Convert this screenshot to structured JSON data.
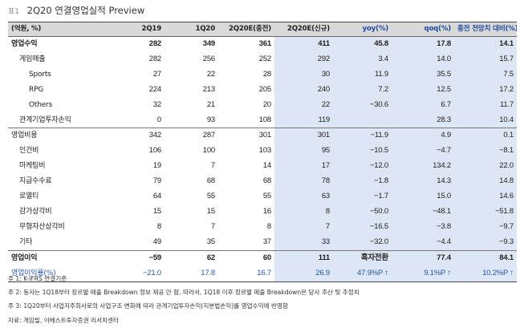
{
  "header": {
    "tag": "표1",
    "title": "2Q20 연결영업실적 Preview"
  },
  "table": {
    "columns": [
      "(억원, %)",
      "2Q19",
      "1Q20",
      "2Q20E(종전)",
      "2Q20E(신규)",
      "yoy(%)",
      "qoq(%)",
      "종전 전망치 대비(%)"
    ],
    "rows": [
      {
        "label": "영업수익",
        "values": [
          "282",
          "349",
          "361",
          "411",
          "45.8",
          "17.8",
          "14.1"
        ]
      },
      {
        "label": "게임매출",
        "values": [
          "282",
          "256",
          "252",
          "292",
          "3.4",
          "14.0",
          "15.7"
        ]
      },
      {
        "label": "Sports",
        "values": [
          "27",
          "22",
          "28",
          "30",
          "11.9",
          "35.5",
          "7.5"
        ]
      },
      {
        "label": "RPG",
        "values": [
          "224",
          "213",
          "205",
          "240",
          "7.2",
          "12.5",
          "17.2"
        ]
      },
      {
        "label": "Others",
        "values": [
          "32",
          "21",
          "20",
          "22",
          "−30.6",
          "6.7",
          "11.7"
        ]
      },
      {
        "label": "관계기업투자손익",
        "values": [
          "0",
          "93",
          "108",
          "119",
          "",
          "28.3",
          "10.4"
        ]
      },
      {
        "label": "영업비용",
        "values": [
          "342",
          "287",
          "301",
          "301",
          "−11.9",
          "4.9",
          "0.1"
        ]
      },
      {
        "label": "인건비",
        "values": [
          "106",
          "100",
          "103",
          "95",
          "−10.5",
          "−4.7",
          "−8.1"
        ]
      },
      {
        "label": "마케팅비",
        "values": [
          "19",
          "7",
          "14",
          "17",
          "−12.0",
          "134.2",
          "22.0"
        ]
      },
      {
        "label": "지급수수료",
        "values": [
          "79",
          "68",
          "68",
          "78",
          "−1.8",
          "14.3",
          "14.8"
        ]
      },
      {
        "label": "로열티",
        "values": [
          "64",
          "55",
          "55",
          "63",
          "−1.7",
          "15.0",
          "14.6"
        ]
      },
      {
        "label": "감가상각비",
        "values": [
          "15",
          "15",
          "16",
          "8",
          "−50.0",
          "−48.1",
          "−51.8"
        ]
      },
      {
        "label": "무형자산상각비",
        "values": [
          "8",
          "7",
          "8",
          "7",
          "−16.5",
          "−3.8",
          "−9.7"
        ]
      },
      {
        "label": "기타",
        "values": [
          "49",
          "35",
          "37",
          "33",
          "−32.0",
          "−4.4",
          "−9.3"
        ]
      },
      {
        "label": "영업이익",
        "values": [
          "−59",
          "62",
          "60",
          "111",
          "흑자전환",
          "77.4",
          "84.1"
        ]
      },
      {
        "label": "영업이익률(%)",
        "values": [
          "−21.0",
          "17.8",
          "16.7",
          "26.9",
          "47.9%P ↑",
          "9.1%P ↑",
          "10.2%P ↑"
        ]
      }
    ]
  },
  "notes": [
    "주 1: K-IFRS 연결기준",
    "주 2: 동사는 1Q18부터 장르별 매출 Breakdown 정보 제공 안 함. 따라서, 1Q18 이후 장르별 매출 Breakdown은 당사 추산 및 추정치",
    "주 3: 1Q20부터 사업지주회사로의 사업구조 변화에 따라 관계기업투자손익(지분법손익)를 영업수익에 반영함",
    "자료: 게임빌, 이베스트투자증권 리서치센터"
  ],
  "colors": {
    "header_bg": "#d9d9d9",
    "highlight_bg": "#dde6f4",
    "blue_text": "#1f4aa0",
    "negative": "#c00000",
    "margin_text": "#2456b0"
  }
}
